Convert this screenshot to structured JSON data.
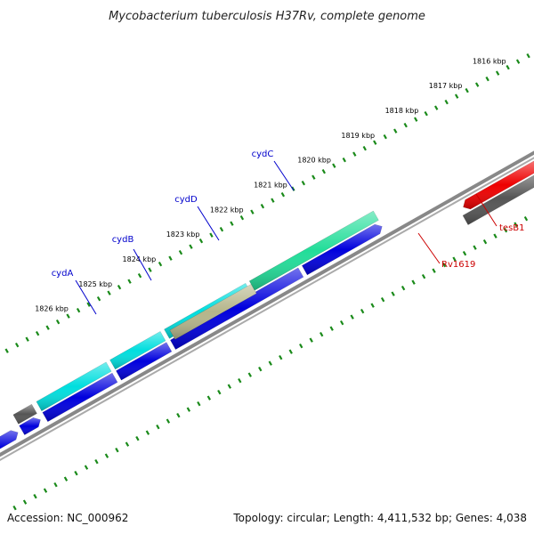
{
  "title": "Mycobacterium tuberculosis H37Rv, complete genome",
  "footer": {
    "accession": "Accession: NC_000962",
    "summary": "Topology: circular; Length: 4,411,532 bp; Genes: 4,038"
  },
  "kbp_labels": [
    "1816 kbp",
    "1817 kbp",
    "1818 kbp",
    "1819 kbp",
    "1820 kbp",
    "1821 kbp",
    "1822 kbp",
    "1823 kbp",
    "1824 kbp",
    "1825 kbp",
    "1826 kbp"
  ],
  "gene_labels": [
    {
      "name": "cydA",
      "color": "#0000cc"
    },
    {
      "name": "cydB",
      "color": "#0000cc"
    },
    {
      "name": "cydD",
      "color": "#0000cc"
    },
    {
      "name": "cydC",
      "color": "#0000cc"
    },
    {
      "name": "Rv1619",
      "color": "#cc0000"
    },
    {
      "name": "tesB1",
      "color": "#cc0000"
    }
  ],
  "colors": {
    "backbone": "#888888",
    "tick": "#1a8a1a",
    "dark_blue": "#0000dd",
    "cyan": "#00dede",
    "teal": "#00cccc",
    "green": "#22dd99",
    "olive": "#b5b58a",
    "gray": "#555555",
    "red": "#ee0000",
    "violet": "#6655dd"
  }
}
